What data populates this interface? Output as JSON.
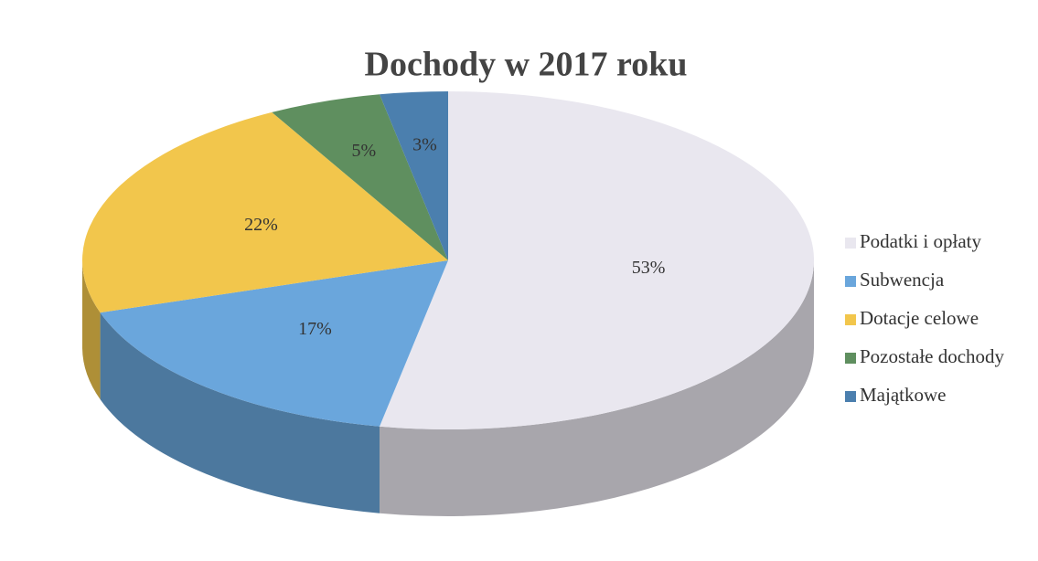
{
  "chart_data": {
    "type": "pie",
    "title": "Dochody w 2017 roku",
    "categories": [
      "Podatki i opłaty",
      "Subwencja",
      "Dotacje celowe",
      "Pozostałe dochody",
      "Majątkowe"
    ],
    "values": [
      53,
      17,
      22,
      5,
      3
    ],
    "value_labels": [
      "53%",
      "17%",
      "22%",
      "5%",
      "3%"
    ],
    "colors": [
      "#e9e7ef",
      "#6aa6dc",
      "#f2c64c",
      "#5f8f5f",
      "#4b7fae"
    ],
    "legend": "right"
  }
}
